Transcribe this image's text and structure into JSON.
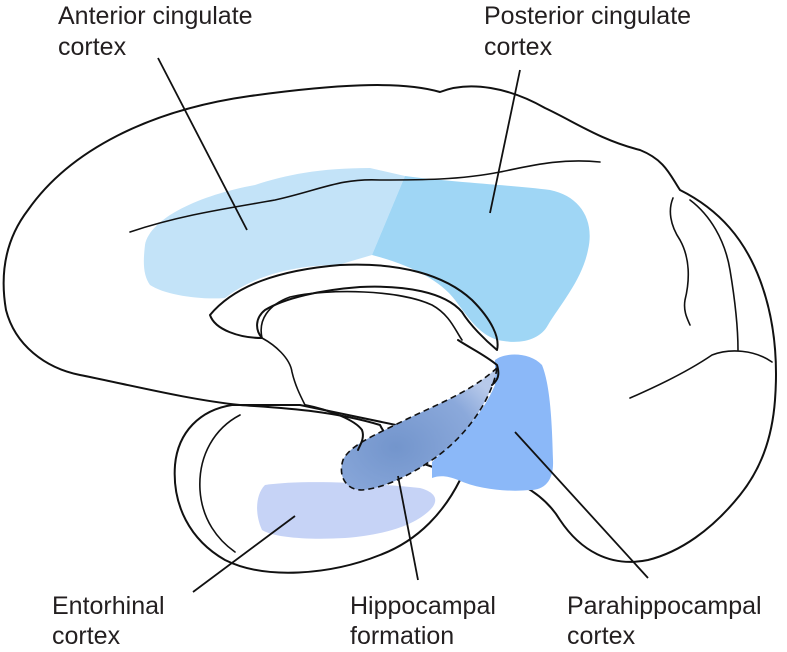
{
  "colors": {
    "cortex_fill": "#fde6d4",
    "anterior_cingulate": "#c3e3f8",
    "posterior_cingulate": "#9fd6f5",
    "parahippocampal": "#8bb8f8",
    "entorhinal": "#c6d3f6",
    "hippocampal": "#7a9fd4"
  },
  "labels": {
    "anterior_cingulate": {
      "line1": "Anterior cingulate",
      "line2": "cortex"
    },
    "posterior_cingulate": {
      "line1": "Posterior cingulate",
      "line2": "cortex"
    },
    "entorhinal": {
      "line1": "Entorhinal",
      "line2": "cortex"
    },
    "hippocampal": {
      "line1": "Hippocampal",
      "line2": "formation"
    },
    "parahippocampal": {
      "line1": "Parahippocampal",
      "line2": "cortex"
    }
  }
}
